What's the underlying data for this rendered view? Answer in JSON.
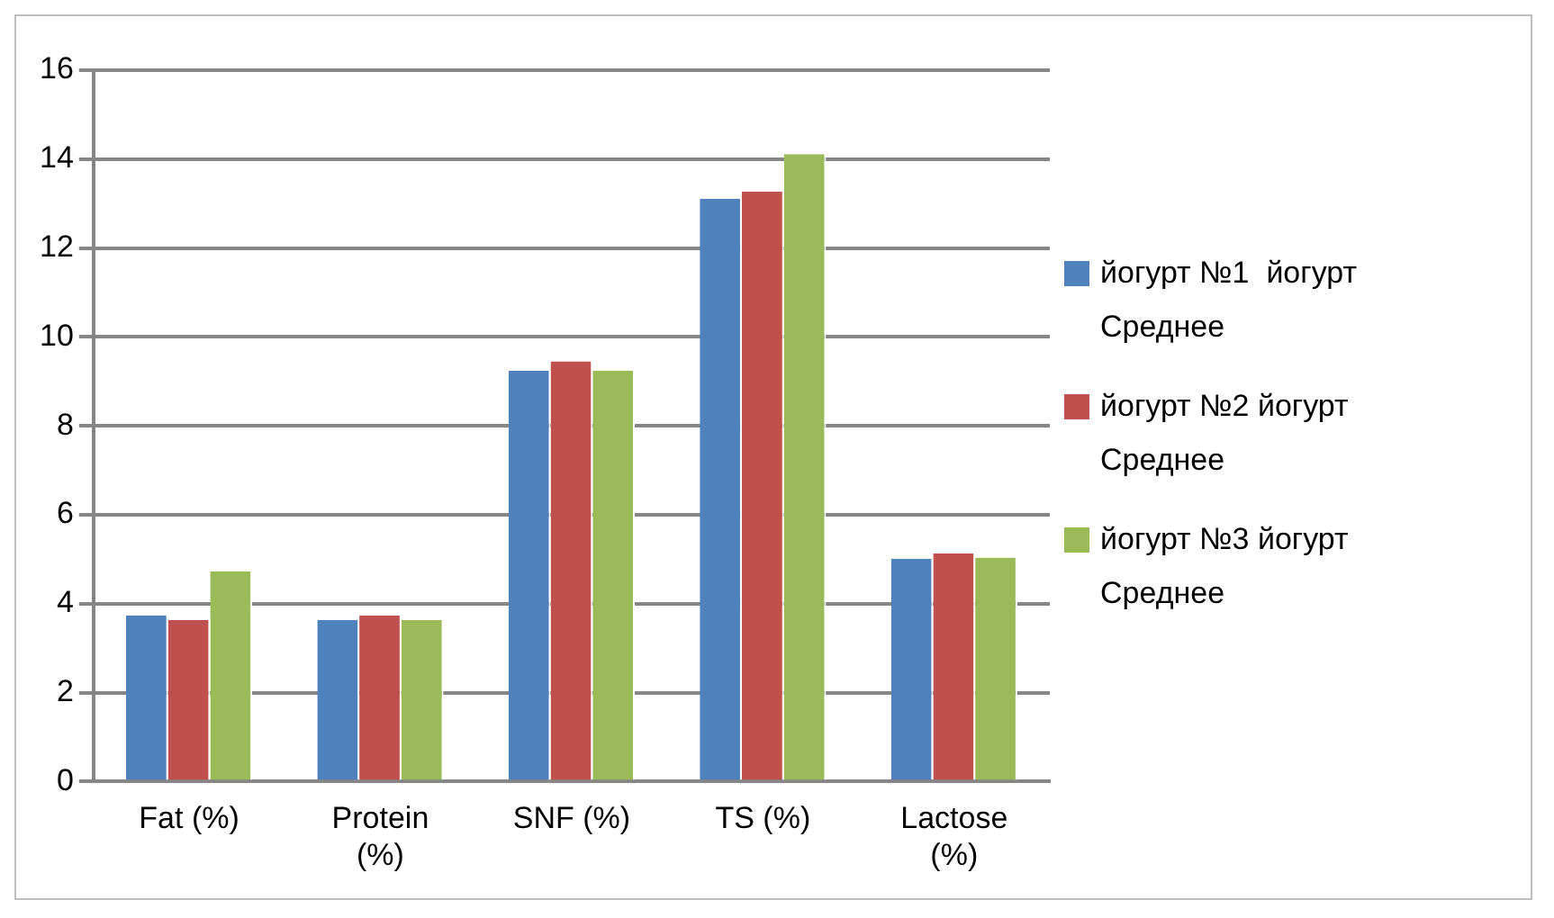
{
  "chart_data": {
    "type": "bar",
    "categories": [
      "Fat (%)",
      "Protein (%)",
      "SNF (%)",
      "TS (%)",
      "Lactose (%)"
    ],
    "series": [
      {
        "name": "йогурт №1  йогурт Среднее",
        "color": "#4f81bd",
        "values": [
          3.74,
          3.63,
          9.24,
          13.11,
          5.01
        ]
      },
      {
        "name": "йогурт №2 йогурт Среднее",
        "color": "#c0504d",
        "values": [
          3.63,
          3.74,
          9.45,
          13.27,
          5.13
        ]
      },
      {
        "name": "йогурт №3 йогурт Среднее",
        "color": "#9bbb59",
        "values": [
          4.73,
          3.63,
          9.24,
          14.11,
          5.04
        ]
      }
    ],
    "ylim": [
      0,
      16
    ],
    "yticks": [
      0,
      2,
      4,
      6,
      8,
      10,
      12,
      14,
      16
    ],
    "grid": "y",
    "legend": "right"
  }
}
